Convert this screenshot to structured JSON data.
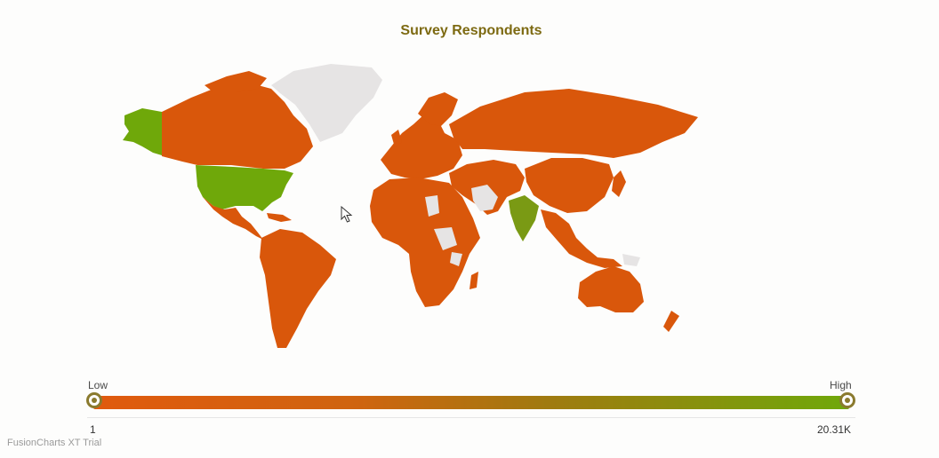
{
  "chart_data": {
    "type": "map",
    "title": "Survey Respondents",
    "legend": {
      "low_label": "Low",
      "high_label": "High",
      "min_value": "1",
      "max_value": "20.31K",
      "color_low": "#e05a0e",
      "color_high": "#6fa80a"
    },
    "highlighted_regions": [
      {
        "name": "United States",
        "level": "high"
      },
      {
        "name": "India",
        "level": "mid-high"
      }
    ],
    "no_data_color": "#e6e4e4",
    "data_color": "#d9570b"
  },
  "footer": {
    "trial_text": "FusionCharts XT Trial"
  },
  "icons": {
    "cursor": "pointer-cursor-icon"
  }
}
